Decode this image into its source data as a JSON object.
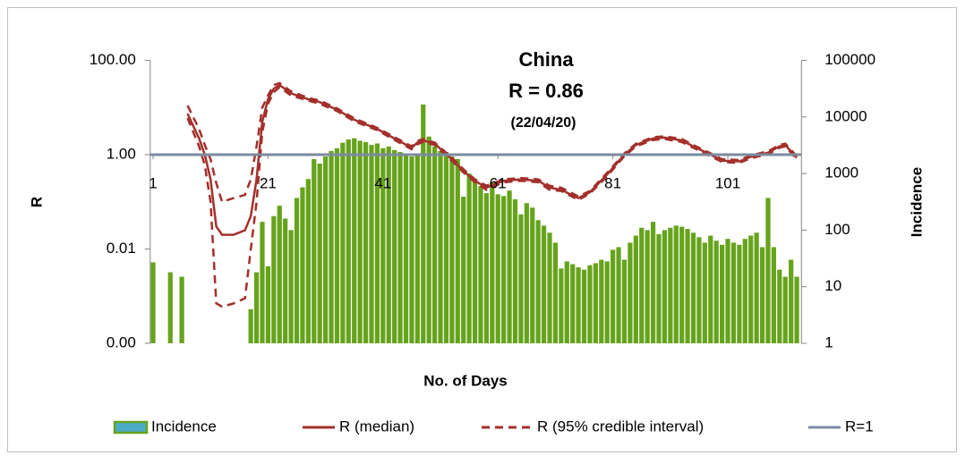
{
  "chart_data": {
    "type": "combo",
    "title": "China",
    "subtitle": "R = 0.86",
    "annotation": "(22/04/20)",
    "x_label": "No. of Days",
    "y_label": "R",
    "y2_label": "Incidence",
    "y_log": true,
    "y2_log": true,
    "ylim": [
      0.0001,
      100
    ],
    "yticks": [
      {
        "value": 100,
        "label": "100.00"
      },
      {
        "value": 1,
        "label": "1.00"
      },
      {
        "value": 0.01,
        "label": "0.01"
      },
      {
        "value": 0.0001,
        "label": "0.00"
      }
    ],
    "y2lim": [
      1,
      100000
    ],
    "y2ticks": [
      1,
      10,
      100,
      1000,
      10000,
      100000
    ],
    "legend": "bottom",
    "categories": [
      1,
      null,
      null,
      null,
      null,
      null,
      null,
      null,
      null,
      null,
      null,
      null,
      null,
      null,
      null,
      null,
      null,
      null,
      null,
      null,
      21,
      null,
      null,
      null,
      null,
      null,
      null,
      null,
      null,
      null,
      null,
      null,
      null,
      null,
      null,
      null,
      null,
      null,
      null,
      null,
      41,
      null,
      null,
      null,
      null,
      null,
      null,
      null,
      null,
      null,
      null,
      null,
      null,
      null,
      null,
      null,
      null,
      null,
      null,
      null,
      61,
      null,
      null,
      null,
      null,
      null,
      null,
      null,
      null,
      null,
      null,
      null,
      null,
      null,
      null,
      null,
      null,
      null,
      null,
      null,
      81,
      null,
      null,
      null,
      null,
      null,
      null,
      null,
      null,
      null,
      null,
      null,
      null,
      null,
      null,
      null,
      null,
      null,
      null,
      null,
      101,
      null,
      null,
      null,
      null,
      null,
      null,
      null,
      null,
      null,
      null,
      null,
      null
    ],
    "series": [
      {
        "name": "Incidence",
        "type": "bar",
        "axis": "y2",
        "color": "#66a31c",
        "legend_color": "#4bacc6",
        "values": [
          27,
          null,
          null,
          18,
          null,
          15,
          null,
          null,
          null,
          null,
          null,
          null,
          null,
          null,
          null,
          null,
          null,
          4,
          18,
          140,
          23,
          177,
          270,
          160,
          100,
          370,
          570,
          800,
          1800,
          1500,
          2000,
          2500,
          2800,
          3500,
          4000,
          4200,
          3800,
          3600,
          3200,
          3400,
          2800,
          3000,
          2600,
          2400,
          2200,
          2000,
          2100,
          16600,
          4500,
          3000,
          2500,
          2400,
          2000,
          1800,
          390,
          1000,
          800,
          600,
          450,
          700,
          430,
          400,
          500,
          350,
          190,
          300,
          250,
          150,
          120,
          90,
          60,
          21,
          28,
          25,
          22,
          20,
          24,
          26,
          30,
          28,
          45,
          50,
          30,
          60,
          80,
          110,
          100,
          140,
          85,
          100,
          110,
          120,
          115,
          105,
          90,
          75,
          60,
          80,
          65,
          55,
          70,
          60,
          55,
          70,
          80,
          90,
          50,
          370,
          50,
          20,
          15,
          30,
          15
        ]
      },
      {
        "name": "R (median)",
        "type": "line",
        "color": "#a3302b",
        "x": [
          7,
          9,
          10,
          11,
          12,
          13,
          15,
          17,
          18,
          19,
          20,
          21,
          22,
          23,
          25,
          28,
          30,
          33,
          36,
          40,
          43,
          46,
          47,
          48,
          50,
          53,
          55,
          57,
          59,
          62,
          65,
          68,
          70,
          72,
          75,
          77,
          80,
          83,
          85,
          88,
          90,
          93,
          95,
          98,
          100,
          103,
          105,
          108,
          110,
          111,
          113
        ],
        "values": [
          7.4,
          2.2,
          1.0,
          0.3,
          0.03,
          0.02,
          0.02,
          0.025,
          0.05,
          0.3,
          5,
          15,
          25,
          30,
          20,
          15,
          13,
          9,
          5.5,
          3.5,
          2.2,
          1.4,
          1.8,
          2.0,
          1.7,
          0.8,
          0.45,
          0.28,
          0.2,
          0.28,
          0.3,
          0.28,
          0.2,
          0.18,
          0.12,
          0.16,
          0.38,
          1.0,
          1.6,
          2.2,
          2.3,
          2.0,
          1.5,
          1.0,
          0.75,
          0.72,
          0.9,
          1.1,
          1.5,
          1.6,
          0.86
        ]
      },
      {
        "name": "R (95% credible interval)",
        "type": "interval",
        "color": "#a3302b",
        "x": [
          7,
          9,
          10,
          11,
          12,
          13,
          15,
          17,
          18,
          19,
          20,
          21,
          22,
          23,
          25,
          28,
          30,
          33,
          36,
          40,
          43,
          46,
          47,
          48,
          50,
          53,
          55,
          57,
          59,
          62,
          65,
          68,
          70,
          72,
          75,
          77,
          80,
          83,
          85,
          88,
          90,
          93,
          95,
          98,
          100,
          103,
          105,
          108,
          110,
          111,
          113
        ],
        "upper": [
          11,
          3.5,
          1.6,
          0.8,
          0.25,
          0.1,
          0.12,
          0.14,
          0.3,
          1.5,
          10,
          18,
          30,
          33,
          22,
          16,
          14,
          9.6,
          5.9,
          3.7,
          2.35,
          1.5,
          1.95,
          2.15,
          1.8,
          0.86,
          0.49,
          0.3,
          0.22,
          0.3,
          0.32,
          0.3,
          0.22,
          0.2,
          0.13,
          0.17,
          0.41,
          1.07,
          1.7,
          2.35,
          2.45,
          2.15,
          1.6,
          1.07,
          0.8,
          0.77,
          0.96,
          1.18,
          1.6,
          1.72,
          0.93
        ],
        "lower": [
          6,
          1.5,
          0.6,
          0.1,
          0.0007,
          0.0006,
          0.0007,
          0.0009,
          0.01,
          0.1,
          3,
          12,
          21,
          27,
          18,
          14,
          12,
          8.4,
          5.1,
          3.3,
          2.05,
          1.3,
          1.66,
          1.86,
          1.6,
          0.74,
          0.42,
          0.26,
          0.18,
          0.26,
          0.28,
          0.26,
          0.18,
          0.17,
          0.11,
          0.15,
          0.35,
          0.93,
          1.5,
          2.05,
          2.15,
          1.85,
          1.4,
          0.93,
          0.7,
          0.67,
          0.84,
          1.02,
          1.4,
          1.5,
          0.8
        ]
      },
      {
        "name": "R=1",
        "type": "hline",
        "color": "#7b8ba0",
        "value": 1
      }
    ]
  }
}
